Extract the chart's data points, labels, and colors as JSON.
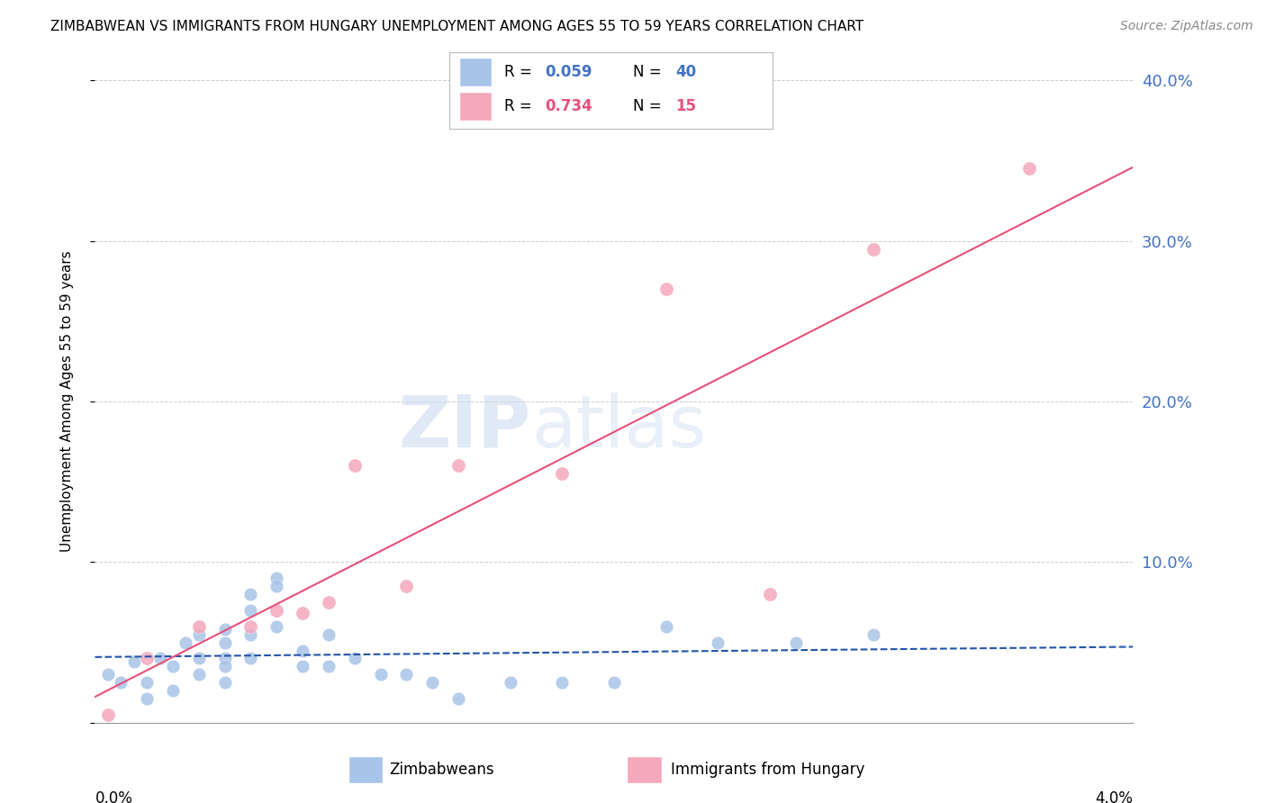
{
  "title": "ZIMBABWEAN VS IMMIGRANTS FROM HUNGARY UNEMPLOYMENT AMONG AGES 55 TO 59 YEARS CORRELATION CHART",
  "source": "Source: ZipAtlas.com",
  "ylabel": "Unemployment Among Ages 55 to 59 years",
  "x_min": 0.0,
  "x_max": 0.04,
  "y_min": 0.0,
  "y_max": 0.4,
  "y_ticks": [
    0.0,
    0.1,
    0.2,
    0.3,
    0.4
  ],
  "y_tick_labels": [
    "",
    "10.0%",
    "20.0%",
    "30.0%",
    "40.0%"
  ],
  "legend_blue_R": "0.059",
  "legend_blue_N": "40",
  "legend_pink_R": "0.734",
  "legend_pink_N": "15",
  "label_blue": "Zimbabweans",
  "label_pink": "Immigrants from Hungary",
  "blue_scatter_color": "#a8c4e8",
  "pink_scatter_color": "#f4a8bc",
  "blue_line_color": "#2255aa",
  "pink_line_color": "#e8507a",
  "right_axis_color": "#4472c4",
  "legend_R_blue_color": "#4472c4",
  "legend_R_pink_color": "#e8507a",
  "legend_N_blue_color": "#4472c4",
  "legend_N_pink_color": "#e8507a",
  "zimbabwe_x": [
    0.0005,
    0.001,
    0.0015,
    0.002,
    0.002,
    0.0025,
    0.003,
    0.003,
    0.0035,
    0.004,
    0.004,
    0.004,
    0.005,
    0.005,
    0.005,
    0.005,
    0.005,
    0.006,
    0.006,
    0.006,
    0.006,
    0.007,
    0.007,
    0.007,
    0.008,
    0.008,
    0.009,
    0.009,
    0.01,
    0.011,
    0.012,
    0.013,
    0.014,
    0.016,
    0.018,
    0.02,
    0.022,
    0.024,
    0.027,
    0.03
  ],
  "zimbabwe_y": [
    0.03,
    0.025,
    0.038,
    0.025,
    0.015,
    0.04,
    0.035,
    0.02,
    0.05,
    0.055,
    0.04,
    0.03,
    0.058,
    0.05,
    0.04,
    0.035,
    0.025,
    0.08,
    0.07,
    0.055,
    0.04,
    0.09,
    0.085,
    0.06,
    0.045,
    0.035,
    0.055,
    0.035,
    0.04,
    0.03,
    0.03,
    0.025,
    0.015,
    0.025,
    0.025,
    0.025,
    0.06,
    0.05,
    0.05,
    0.055
  ],
  "hungary_x": [
    0.0005,
    0.002,
    0.004,
    0.006,
    0.007,
    0.008,
    0.009,
    0.01,
    0.012,
    0.014,
    0.018,
    0.022,
    0.026,
    0.03,
    0.036
  ],
  "hungary_y": [
    0.005,
    0.04,
    0.06,
    0.06,
    0.07,
    0.068,
    0.075,
    0.16,
    0.085,
    0.16,
    0.155,
    0.27,
    0.08,
    0.295,
    0.345
  ]
}
